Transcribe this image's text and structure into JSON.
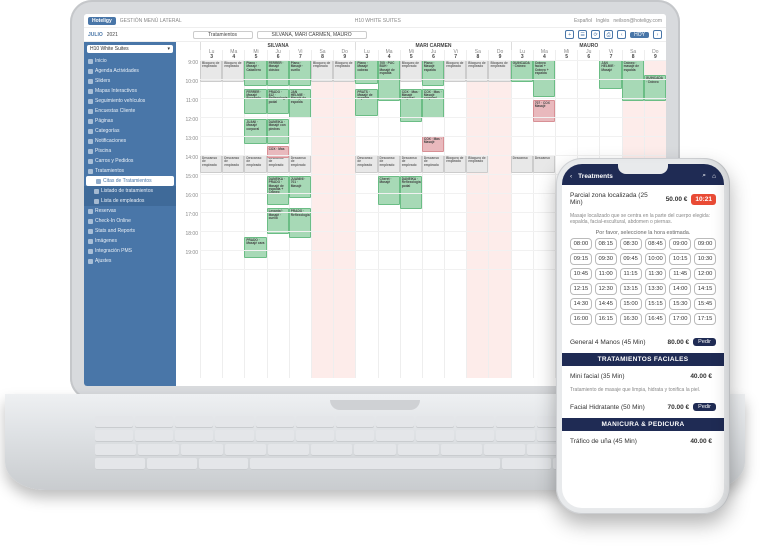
{
  "colors": {
    "brand": "#4976a8",
    "darknavy": "#1f2b54",
    "green": "#a7d9b6",
    "pink": "#e9b9bd",
    "grey": "#e8e8e8",
    "weekend": "#fdecea",
    "accent_red": "#e94b35"
  },
  "topbar": {
    "logo": "Hoteligy",
    "subtitle": "GESTIÓN MENÚ LATERAL",
    "title": "H10 WHITE SUITES",
    "lang1": "Español",
    "lang2": "Inglés",
    "email": "neilson@hoteligy.com"
  },
  "toolbar": {
    "month_label": "JULIO",
    "year": "2021",
    "sel1": "Tratamientos",
    "sel2": "SILVANA, MARI CARMEN, MAURO",
    "hoy": "HOY"
  },
  "sidebar": {
    "hotel": "H10 White Suites",
    "items": [
      {
        "label": "Inicio"
      },
      {
        "label": "Agenda Actividades"
      },
      {
        "label": "Sliders"
      },
      {
        "label": "Mapas Interactivos"
      },
      {
        "label": "Seguimiento vehículos"
      },
      {
        "label": "Encuestas Cliente"
      },
      {
        "label": "Páginas"
      },
      {
        "label": "Categorías"
      },
      {
        "label": "Notificaciones"
      },
      {
        "label": "Piscina"
      },
      {
        "label": "Carros y Pedidos"
      },
      {
        "label": "Tratamientos"
      },
      {
        "label": "Citas de Tratamientos",
        "sub": true,
        "active": true
      },
      {
        "label": "Listado de tratamientos",
        "sub": true
      },
      {
        "label": "Lista de empleados",
        "sub": true
      },
      {
        "label": "Reservas"
      },
      {
        "label": "Check-In Online"
      },
      {
        "label": "Stats and Reports"
      },
      {
        "label": "Imágenes"
      },
      {
        "label": "Integración PMS"
      },
      {
        "label": "Ajustes"
      }
    ]
  },
  "calendar": {
    "groups": [
      "SILVANA",
      "MARI CARMEN",
      "MAURO"
    ],
    "day_names": [
      "Lu",
      "Ma",
      "Mi",
      "Ju",
      "Vi",
      "Sa",
      "Do"
    ],
    "day_nums": [
      "3",
      "4",
      "5",
      "6",
      "7",
      "8",
      "9"
    ],
    "hours": [
      "9:00",
      "10:00",
      "11:00",
      "12:00",
      "13:00",
      "14:00",
      "15:00",
      "16:00",
      "17:00",
      "18:00",
      "19:00"
    ],
    "weekend_cols": [
      5,
      6,
      12,
      13,
      19,
      20
    ],
    "grey_blocks": [
      {
        "col": 0,
        "row": 0,
        "span": 1.2,
        "t": "Bloqueo de empleado"
      },
      {
        "col": 1,
        "row": 0,
        "span": 1.2,
        "t": "Bloqueo de empleado"
      },
      {
        "col": 5,
        "row": 0,
        "span": 1.2,
        "t": "Bloqueo de empleado"
      },
      {
        "col": 6,
        "row": 0,
        "span": 1.2,
        "t": "Bloqueo de empleado"
      },
      {
        "col": 9,
        "row": 0,
        "span": 1.2,
        "t": "Bloqueo de empleado"
      },
      {
        "col": 11,
        "row": 0,
        "span": 1.2,
        "t": "Bloqueo de empleado"
      },
      {
        "col": 12,
        "row": 0,
        "span": 1.2,
        "t": "Bloqueo de empleado"
      },
      {
        "col": 13,
        "row": 0,
        "span": 1.2,
        "t": "Bloqueo de empleado"
      },
      {
        "col": 0,
        "row": 5,
        "span": 1,
        "t": "Descanso de empleado"
      },
      {
        "col": 1,
        "row": 5,
        "span": 1,
        "t": "Descanso de empleado"
      },
      {
        "col": 2,
        "row": 5,
        "span": 1,
        "t": "Descanso de empleado"
      },
      {
        "col": 3,
        "row": 5,
        "span": 1,
        "t": "Descanso de empleado"
      },
      {
        "col": 4,
        "row": 5,
        "span": 1,
        "t": "Descanso de empleado"
      },
      {
        "col": 7,
        "row": 5,
        "span": 1,
        "t": "Descanso de empleado"
      },
      {
        "col": 8,
        "row": 5,
        "span": 1,
        "t": "Descanso de empleado"
      },
      {
        "col": 9,
        "row": 5,
        "span": 1,
        "t": "Descanso de empleado"
      },
      {
        "col": 10,
        "row": 5,
        "span": 1,
        "t": "Descanso de empleado"
      },
      {
        "col": 11,
        "row": 5,
        "span": 1,
        "t": "Bloqueo de empleado"
      },
      {
        "col": 12,
        "row": 5,
        "span": 1,
        "t": "Bloqueo de empleado"
      },
      {
        "col": 14,
        "row": 5,
        "span": 1,
        "t": "Descanso"
      },
      {
        "col": 15,
        "row": 5,
        "span": 1,
        "t": "Descanso"
      }
    ],
    "green_blocks": [
      {
        "col": 2,
        "row": 0,
        "span": 1.4,
        "t": "Plano · Masajé · Caballero"
      },
      {
        "col": 3,
        "row": 0,
        "span": 1.4,
        "t": "FERRER · Masajé clásico"
      },
      {
        "col": 4,
        "row": 0,
        "span": 1.4,
        "t": "Plano · Masajé · cuello"
      },
      {
        "col": 2,
        "row": 1.5,
        "span": 1.4,
        "t": "FERRER · Masajé Brozeado"
      },
      {
        "col": 3,
        "row": 1.5,
        "span": 1.4,
        "t": "PRADO · 812 · Reflexología podal"
      },
      {
        "col": 4,
        "row": 1.5,
        "span": 1.6,
        "t": "JAN HELMIE · Masajé de espalda"
      },
      {
        "col": 2,
        "row": 3.1,
        "span": 1.4,
        "t": "JUANI · Masajé corporal"
      },
      {
        "col": 3,
        "row": 3.1,
        "span": 1.4,
        "t": "DANEIKA · Masajé con piedras"
      },
      {
        "col": 3,
        "row": 6.1,
        "span": 1.6,
        "t": "DANEIKA · PRADO · Masajé de espalda + Cráneo"
      },
      {
        "col": 4,
        "row": 6.1,
        "span": 1.2,
        "t": "JUANINI · 701 · Masajé"
      },
      {
        "col": 3,
        "row": 7.8,
        "span": 1.4,
        "t": "Levante/ · Masajé · cuello"
      },
      {
        "col": 4,
        "row": 7.8,
        "span": 1.6,
        "t": "PRADO · Reflexología"
      },
      {
        "col": 2,
        "row": 9.3,
        "span": 1.2,
        "t": "PRADO · Masajé cara"
      },
      {
        "col": 7,
        "row": 0,
        "span": 1.3,
        "t": "Plano · Masajé cabeza"
      },
      {
        "col": 8,
        "row": 0,
        "span": 2.2,
        "t": "705 · PUC BUH · Masajé de espalda"
      },
      {
        "col": 10,
        "row": 0,
        "span": 1.4,
        "t": "Plano · Masajé espalda"
      },
      {
        "col": 7,
        "row": 1.5,
        "span": 1.5,
        "t": "PRATS · Masajé de espalda"
      },
      {
        "col": 9,
        "row": 1.5,
        "span": 1.8,
        "t": "COX · Mas · Masajé corporal"
      },
      {
        "col": 10,
        "row": 1.5,
        "span": 1.6,
        "t": "COX · Mas · Masajé corporal"
      },
      {
        "col": 8,
        "row": 6.1,
        "span": 1.6,
        "t": "Cheret · Masajé"
      },
      {
        "col": 9,
        "row": 6.1,
        "span": 1.8,
        "t": "DANEIKA · Reflexología podal"
      },
      {
        "col": 14,
        "row": 0,
        "span": 1.2,
        "t": "GUINCADA · Cráneo"
      },
      {
        "col": 15,
        "row": 0,
        "span": 2.0,
        "t": "Cráneo facial + Cráneo + espalda"
      },
      {
        "col": 18,
        "row": 0,
        "span": 1.6,
        "t": "JAN HELMIE · Masajé"
      },
      {
        "col": 19,
        "row": 0,
        "span": 2.2,
        "t": "Cráneo · masajé de espalda"
      },
      {
        "col": 20,
        "row": 0.8,
        "span": 1.4,
        "t": "GUINCADA · Cráneo"
      }
    ],
    "pink_blocks": [
      {
        "col": 3,
        "row": 4.5,
        "span": 0.7,
        "t": "COX · Mas"
      },
      {
        "col": 10,
        "row": 4.0,
        "span": 0.9,
        "t": "COX · Mas · Masajé"
      },
      {
        "col": 15,
        "row": 2.1,
        "span": 1.2,
        "t": "707 · COX Masajé"
      }
    ]
  },
  "phone": {
    "title": "Treatments",
    "badge": "10:21",
    "item1_name": "Parcial zona localizada (25 Min)",
    "item1_price": "50.00 €",
    "item1_note": "Masaje localizado que se centra en la parte del cuerpo elegida: espalda, facial-escultural, abdomen o piernas.",
    "grid_label": "Por favor, seleccione la hora estimada.",
    "times": [
      "08:00",
      "08:15",
      "08:30",
      "08:45",
      "09:00",
      "09:00",
      "09:15",
      "09:30",
      "09:45",
      "10:00",
      "10:15",
      "10:30",
      "10:45",
      "11:00",
      "11:15",
      "11:30",
      "11:45",
      "12:00",
      "12:15",
      "12:30",
      "13:15",
      "13:30",
      "14:00",
      "14:15",
      "14:30",
      "14:45",
      "15:00",
      "15:15",
      "15:30",
      "15:45",
      "16:00",
      "16:15",
      "16:30",
      "16:45",
      "17:00",
      "17:15"
    ],
    "svc1_name": "General 4 Manos (45 Min)",
    "svc1_price": "80.00 €",
    "cat1": "TRATAMIENTOS FACIALES",
    "svc2_name": "Mini facial (35 Min)",
    "svc2_price": "40.00 €",
    "svc2_note": "Tratamiento de masaje que limpia, hidrata y tonifica la piel.",
    "svc3_name": "Facial Hidratante (50 Min)",
    "svc3_price": "70.00 €",
    "cat2": "MANICURA & PEDICURA",
    "svc4_name": "Tráfico de uña (45 Min)",
    "svc4_price": "40.00 €",
    "btn": "Pedir"
  }
}
